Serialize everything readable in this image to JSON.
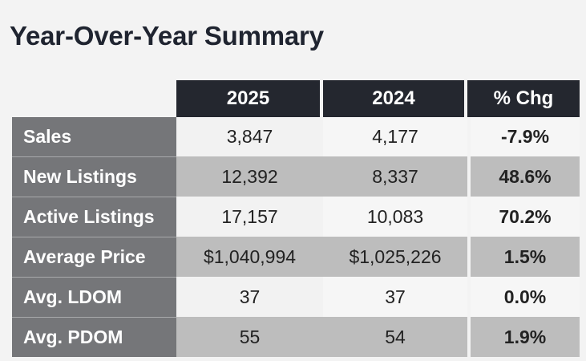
{
  "title": "Year-Over-Year Summary",
  "chart_data": {
    "type": "table",
    "title": "Year-Over-Year Summary",
    "columns": [
      "2025",
      "2024",
      "% Chg"
    ],
    "rows": [
      {
        "label": "Sales",
        "y2025": "3,847",
        "y2024": "4,177",
        "chg": "-7.9%"
      },
      {
        "label": "New Listings",
        "y2025": "12,392",
        "y2024": "8,337",
        "chg": "48.6%"
      },
      {
        "label": "Active Listings",
        "y2025": "17,157",
        "y2024": "10,083",
        "chg": "70.2%"
      },
      {
        "label": "Average Price",
        "y2025": "$1,040,994",
        "y2024": "$1,025,226",
        "chg": "1.5%"
      },
      {
        "label": "Avg. LDOM",
        "y2025": "37",
        "y2024": "37",
        "chg": "0.0%"
      },
      {
        "label": "Avg. PDOM",
        "y2025": "55",
        "y2024": "54",
        "chg": "1.9%"
      }
    ]
  }
}
